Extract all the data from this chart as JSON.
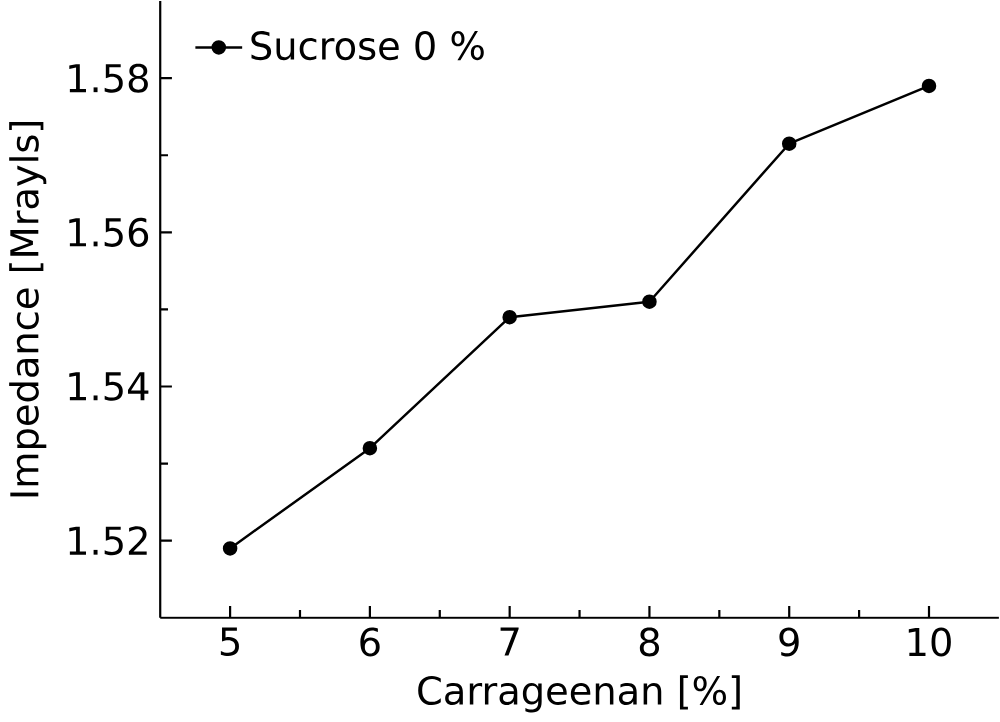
{
  "chart_data": {
    "type": "line",
    "xlabel": "Carrageenan [%]",
    "ylabel": "Impedance [Mrayls]",
    "x": [
      5,
      6,
      7,
      8,
      9,
      10
    ],
    "series": [
      {
        "name": "Sucrose 0 %",
        "color": "#000000",
        "values": [
          1.519,
          1.532,
          1.549,
          1.551,
          1.5715,
          1.579
        ]
      }
    ],
    "xlim": [
      4.5,
      10.5
    ],
    "ylim": [
      1.51,
      1.59
    ],
    "xticks": [
      5,
      6,
      7,
      8,
      9,
      10
    ],
    "yticks": [
      1.52,
      1.54,
      1.56,
      1.58
    ],
    "marker": "circle",
    "line_style": "solid",
    "legend": "top left",
    "grid": false
  }
}
